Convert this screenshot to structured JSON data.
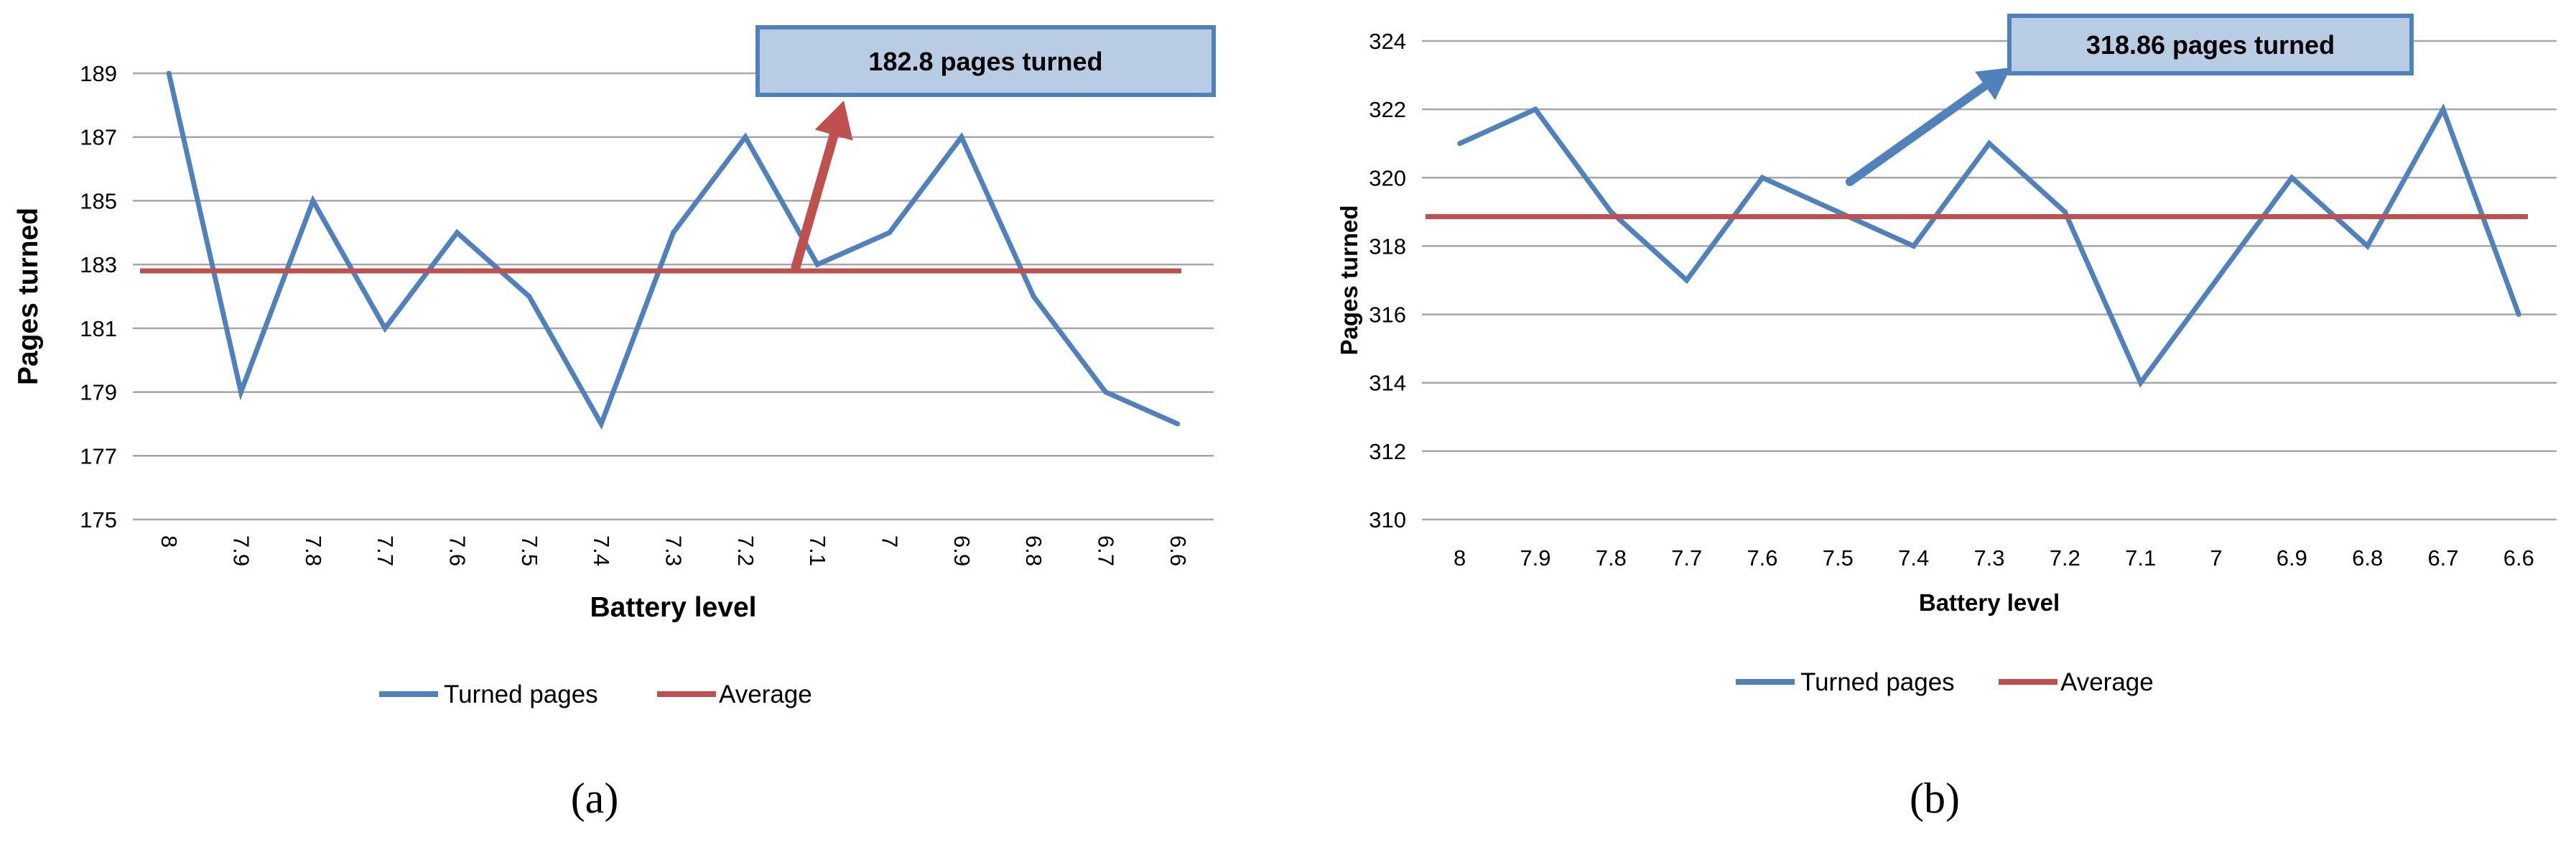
{
  "colors": {
    "series_line": "#4F81BD",
    "average_line": "#C0504D",
    "gridline": "#A6A6A6",
    "callout_fill": "#B8CCE4",
    "callout_border": "#4F81BD",
    "text": "#000000"
  },
  "chart_data": [
    {
      "type": "line",
      "panel_label": "(a)",
      "categories": [
        "8",
        "7.9",
        "7.8",
        "7.7",
        "7.6",
        "7.5",
        "7.4",
        "7.3",
        "7.2",
        "7.1",
        "7",
        "6.9",
        "6.8",
        "6.7",
        "6.6"
      ],
      "series": [
        {
          "name": "Turned pages",
          "values": [
            189,
            179,
            185,
            181,
            184,
            182,
            178,
            184,
            187,
            183,
            184,
            187,
            182,
            179,
            178
          ]
        },
        {
          "name": "Average",
          "values": [
            182.8,
            182.8,
            182.8,
            182.8,
            182.8,
            182.8,
            182.8,
            182.8,
            182.8,
            182.8,
            182.8,
            182.8,
            182.8,
            182.8,
            182.8
          ]
        }
      ],
      "xlabel": "Battery level",
      "ylabel": "Pages  turned",
      "ylim": [
        175,
        189
      ],
      "yticks": [
        "175",
        "177",
        "179",
        "181",
        "183",
        "185",
        "187",
        "189"
      ],
      "annotation": "182.8 pages turned",
      "arrow_color": "#C0504D",
      "xtick_rotation": "vertical",
      "grid": "horizontal",
      "legend_position": "bottom"
    },
    {
      "type": "line",
      "panel_label": "(b)",
      "categories": [
        "8",
        "7.9",
        "7.8",
        "7.7",
        "7.6",
        "7.5",
        "7.4",
        "7.3",
        "7.2",
        "7.1",
        "7",
        "6.9",
        "6.8",
        "6.7",
        "6.6"
      ],
      "series": [
        {
          "name": "Turned pages",
          "values": [
            321,
            322,
            319,
            317,
            320,
            319,
            318,
            321,
            319,
            314,
            317,
            320,
            318,
            322,
            316
          ]
        },
        {
          "name": "Average",
          "values": [
            318.86,
            318.86,
            318.86,
            318.86,
            318.86,
            318.86,
            318.86,
            318.86,
            318.86,
            318.86,
            318.86,
            318.86,
            318.86,
            318.86,
            318.86
          ]
        }
      ],
      "xlabel": "Battery level",
      "ylabel": "Pages  turned",
      "ylim": [
        310,
        324
      ],
      "yticks": [
        "310",
        "312",
        "314",
        "316",
        "318",
        "320",
        "322",
        "324"
      ],
      "annotation": "318.86 pages turned",
      "arrow_color": "#4F81BD",
      "xtick_rotation": "horizontal",
      "grid": "horizontal",
      "legend_position": "bottom"
    }
  ]
}
